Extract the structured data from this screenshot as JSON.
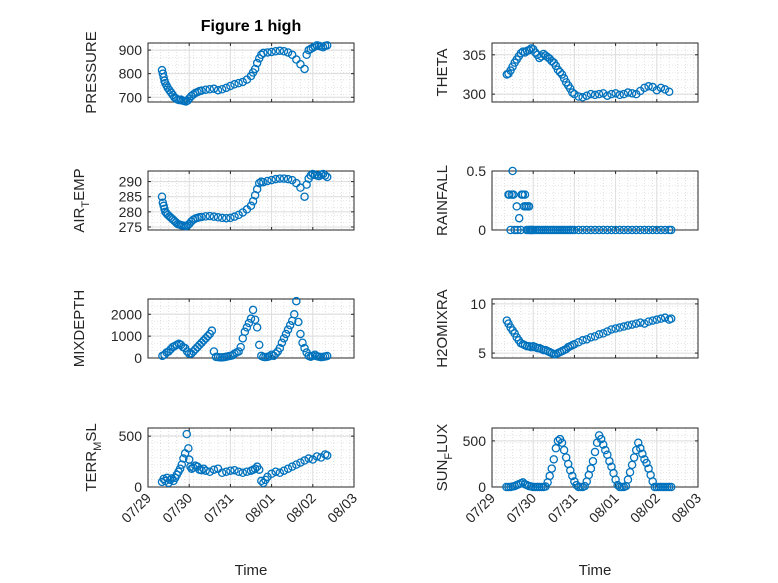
{
  "figure": {
    "title": "Figure 1 high",
    "colors": {
      "marker": "#0072bd",
      "axes": "#262626",
      "grid": "#dcdcdc"
    }
  },
  "chart_data": [
    {
      "type": "scatter",
      "id": "pressure",
      "ylabel": "PRESSURE",
      "ylim": [
        680,
        930
      ],
      "yticks": [
        700,
        800,
        900
      ],
      "xlim": [
        0,
        5
      ],
      "xlabel": "",
      "xticklabels": [],
      "grid": true,
      "x": [
        0.34,
        0.36,
        0.38,
        0.4,
        0.42,
        0.45,
        0.48,
        0.52,
        0.56,
        0.6,
        0.64,
        0.68,
        0.72,
        0.76,
        0.8,
        0.84,
        0.88,
        0.92,
        0.96,
        1.0,
        1.05,
        1.1,
        1.15,
        1.2,
        1.25,
        1.3,
        1.4,
        1.5,
        1.6,
        1.7,
        1.8,
        1.9,
        2.0,
        2.1,
        2.2,
        2.3,
        2.4,
        2.5,
        2.55,
        2.6,
        2.65,
        2.7,
        2.75,
        2.8,
        2.9,
        3.0,
        3.1,
        3.2,
        3.3,
        3.4,
        3.5,
        3.6,
        3.7,
        3.8,
        3.85,
        3.9,
        3.95,
        4.0,
        4.05,
        4.1,
        4.15,
        4.2,
        4.25,
        4.3,
        4.35
      ],
      "y": [
        815,
        800,
        785,
        770,
        760,
        750,
        740,
        730,
        720,
        710,
        700,
        695,
        690,
        688,
        690,
        686,
        684,
        682,
        686,
        695,
        705,
        712,
        718,
        722,
        726,
        728,
        732,
        734,
        736,
        730,
        734,
        740,
        748,
        755,
        760,
        765,
        775,
        790,
        805,
        820,
        845,
        865,
        880,
        888,
        890,
        892,
        895,
        897,
        895,
        890,
        880,
        860,
        840,
        820,
        880,
        900,
        905,
        910,
        915,
        920,
        918,
        915,
        912,
        918,
        920
      ]
    },
    {
      "type": "scatter",
      "id": "theta",
      "ylabel": "THETA",
      "ylim": [
        299,
        306.5
      ],
      "yticks": [
        300,
        305
      ],
      "xlim": [
        0,
        5
      ],
      "xlabel": "",
      "xticklabels": [],
      "grid": true,
      "x": [
        0.36,
        0.4,
        0.45,
        0.5,
        0.55,
        0.6,
        0.65,
        0.7,
        0.75,
        0.8,
        0.85,
        0.9,
        0.95,
        1.0,
        1.05,
        1.1,
        1.15,
        1.2,
        1.25,
        1.3,
        1.35,
        1.4,
        1.45,
        1.5,
        1.55,
        1.6,
        1.65,
        1.7,
        1.75,
        1.8,
        1.85,
        1.9,
        1.95,
        2.0,
        2.1,
        2.2,
        2.3,
        2.4,
        2.5,
        2.6,
        2.7,
        2.8,
        2.9,
        3.0,
        3.1,
        3.2,
        3.3,
        3.4,
        3.5,
        3.6,
        3.7,
        3.8,
        3.9,
        4.0,
        4.1,
        4.2,
        4.3
      ],
      "y": [
        302.5,
        302.6,
        303.0,
        303.5,
        304.0,
        304.4,
        304.8,
        305.2,
        305.4,
        305.3,
        305.5,
        305.6,
        305.8,
        305.7,
        305.3,
        305.0,
        304.6,
        304.8,
        305.1,
        304.9,
        304.7,
        304.5,
        304.2,
        304.0,
        303.6,
        303.1,
        302.8,
        302.5,
        302.0,
        301.5,
        301.1,
        300.7,
        300.2,
        300.0,
        299.7,
        299.6,
        299.8,
        300.0,
        299.9,
        300.0,
        300.1,
        299.8,
        300.0,
        300.1,
        299.9,
        300.0,
        300.2,
        300.1,
        300.0,
        300.4,
        300.8,
        301.0,
        300.9,
        300.5,
        300.8,
        300.6,
        300.3
      ]
    },
    {
      "type": "scatter",
      "id": "air_temp",
      "ylabel": "AIR_TEMP",
      "ylim": [
        274,
        293.5
      ],
      "yticks": [
        275,
        280,
        285,
        290
      ],
      "xlim": [
        0,
        5
      ],
      "xlabel": "",
      "xticklabels": [],
      "grid": true,
      "x": [
        0.34,
        0.36,
        0.38,
        0.4,
        0.42,
        0.45,
        0.48,
        0.52,
        0.56,
        0.6,
        0.64,
        0.68,
        0.72,
        0.76,
        0.8,
        0.84,
        0.88,
        0.92,
        0.96,
        1.0,
        1.05,
        1.1,
        1.15,
        1.2,
        1.25,
        1.3,
        1.4,
        1.5,
        1.6,
        1.7,
        1.8,
        1.9,
        2.0,
        2.1,
        2.2,
        2.3,
        2.4,
        2.5,
        2.55,
        2.6,
        2.65,
        2.7,
        2.75,
        2.8,
        2.9,
        3.0,
        3.1,
        3.2,
        3.3,
        3.4,
        3.5,
        3.6,
        3.7,
        3.8,
        3.85,
        3.9,
        3.95,
        4.0,
        4.05,
        4.1,
        4.15,
        4.2,
        4.25,
        4.3,
        4.35
      ],
      "y": [
        285,
        283,
        282,
        281,
        280,
        279.5,
        279,
        278.5,
        278,
        277.5,
        277,
        276.5,
        276,
        275.8,
        275.6,
        275.5,
        275.4,
        275.3,
        275.5,
        276,
        276.8,
        277.4,
        277.8,
        278,
        278.2,
        278.3,
        278.5,
        278.6,
        278.4,
        278.2,
        278,
        277.9,
        278,
        278.4,
        279,
        279.8,
        280.8,
        282,
        283.5,
        285.5,
        287.5,
        289.5,
        290,
        289.8,
        290.2,
        290.5,
        290.8,
        291,
        291,
        290.8,
        290.5,
        289.5,
        288,
        285,
        289,
        291,
        292,
        292.5,
        292.2,
        292,
        291.8,
        292.3,
        292.5,
        292,
        291.5
      ]
    },
    {
      "type": "scatter",
      "id": "rainfall",
      "ylabel": "RAINFALL",
      "ylim": [
        0,
        0.5
      ],
      "yticks": [
        0,
        0.5
      ],
      "xlim": [
        0,
        5
      ],
      "xlabel": "",
      "xticklabels": [],
      "grid": true,
      "x": [
        0.4,
        0.42,
        0.45,
        0.48,
        0.5,
        0.52,
        0.55,
        0.6,
        0.62,
        0.66,
        0.7,
        0.72,
        0.75,
        0.78,
        0.8,
        0.82,
        0.84,
        0.86,
        0.88,
        0.9,
        0.92,
        0.94,
        0.96,
        0.98,
        1.0,
        1.05,
        1.1,
        1.15,
        1.2,
        1.25,
        1.3,
        1.35,
        1.4,
        1.45,
        1.5,
        1.55,
        1.6,
        1.65,
        1.7,
        1.75,
        1.8,
        1.85,
        1.9,
        1.95,
        2.0,
        2.1,
        2.2,
        2.3,
        2.4,
        2.5,
        2.6,
        2.7,
        2.8,
        2.9,
        3.0,
        3.1,
        3.2,
        3.3,
        3.4,
        3.5,
        3.6,
        3.7,
        3.8,
        3.9,
        4.0,
        4.1,
        4.2,
        4.3,
        4.35
      ],
      "y": [
        0.3,
        0.3,
        0,
        0.3,
        0.5,
        0.3,
        0,
        0.2,
        0,
        0.1,
        0,
        0.3,
        0.3,
        0.2,
        0.3,
        0.2,
        0,
        0.2,
        0,
        0.2,
        0,
        0,
        0,
        0,
        0,
        0,
        0,
        0,
        0,
        0,
        0,
        0,
        0,
        0,
        0,
        0,
        0,
        0,
        0,
        0,
        0,
        0,
        0,
        0,
        0,
        0,
        0,
        0,
        0,
        0,
        0,
        0,
        0,
        0,
        0,
        0,
        0,
        0,
        0,
        0,
        0,
        0,
        0,
        0,
        0,
        0,
        0,
        0,
        0
      ]
    },
    {
      "type": "scatter",
      "id": "mixdepth",
      "ylabel": "MIXDEPTH",
      "ylim": [
        0,
        2700
      ],
      "yticks": [
        0,
        1000,
        2000
      ],
      "xlim": [
        0,
        5
      ],
      "xlabel": "",
      "xticklabels": [],
      "grid": true,
      "x": [
        0.35,
        0.4,
        0.45,
        0.5,
        0.55,
        0.6,
        0.65,
        0.7,
        0.75,
        0.8,
        0.85,
        0.9,
        0.95,
        1.0,
        1.05,
        1.1,
        1.15,
        1.2,
        1.25,
        1.3,
        1.35,
        1.4,
        1.45,
        1.5,
        1.55,
        1.6,
        1.65,
        1.7,
        1.75,
        1.8,
        1.85,
        1.9,
        1.95,
        2.0,
        2.05,
        2.1,
        2.15,
        2.2,
        2.25,
        2.3,
        2.35,
        2.4,
        2.45,
        2.5,
        2.55,
        2.6,
        2.65,
        2.7,
        2.75,
        2.8,
        2.85,
        2.9,
        2.95,
        3.0,
        3.05,
        3.1,
        3.15,
        3.2,
        3.25,
        3.3,
        3.35,
        3.4,
        3.45,
        3.5,
        3.55,
        3.6,
        3.65,
        3.7,
        3.75,
        3.8,
        3.85,
        3.9,
        3.95,
        4.0,
        4.05,
        4.1,
        4.15,
        4.2,
        4.25,
        4.3,
        4.35
      ],
      "y": [
        100,
        150,
        250,
        300,
        400,
        500,
        550,
        600,
        650,
        600,
        500,
        450,
        300,
        200,
        200,
        300,
        400,
        500,
        600,
        700,
        800,
        900,
        1000,
        1100,
        1250,
        300,
        50,
        40,
        30,
        30,
        40,
        60,
        80,
        100,
        120,
        200,
        250,
        300,
        500,
        900,
        1200,
        1400,
        1600,
        1800,
        2200,
        1750,
        1400,
        600,
        100,
        50,
        40,
        50,
        80,
        150,
        100,
        200,
        300,
        450,
        700,
        900,
        1100,
        1300,
        1500,
        1700,
        2000,
        2600,
        1650,
        1100,
        700,
        450,
        250,
        100,
        60,
        100,
        150,
        80,
        60,
        40,
        50,
        70,
        90
      ]
    },
    {
      "type": "scatter",
      "id": "h2omixra",
      "ylabel": "H2OMIXRA",
      "ylim": [
        4.5,
        10.5
      ],
      "yticks": [
        5,
        10
      ],
      "xlim": [
        0,
        5
      ],
      "xlabel": "",
      "xticklabels": [],
      "grid": true,
      "x": [
        0.36,
        0.4,
        0.45,
        0.5,
        0.55,
        0.6,
        0.65,
        0.7,
        0.75,
        0.8,
        0.85,
        0.9,
        0.95,
        1.0,
        1.05,
        1.1,
        1.15,
        1.2,
        1.25,
        1.3,
        1.35,
        1.4,
        1.45,
        1.5,
        1.55,
        1.6,
        1.65,
        1.7,
        1.75,
        1.8,
        1.85,
        1.9,
        1.95,
        2.0,
        2.1,
        2.2,
        2.3,
        2.4,
        2.5,
        2.6,
        2.7,
        2.8,
        2.9,
        3.0,
        3.1,
        3.2,
        3.3,
        3.4,
        3.5,
        3.6,
        3.7,
        3.8,
        3.9,
        4.0,
        4.1,
        4.2,
        4.3,
        4.35
      ],
      "y": [
        8.3,
        8.0,
        7.6,
        7.3,
        7.0,
        6.6,
        6.3,
        6.0,
        5.9,
        5.8,
        5.7,
        5.7,
        5.6,
        5.7,
        5.6,
        5.5,
        5.5,
        5.4,
        5.3,
        5.3,
        5.2,
        5.1,
        5.0,
        4.9,
        4.9,
        5.0,
        5.1,
        5.2,
        5.3,
        5.4,
        5.6,
        5.7,
        5.8,
        5.9,
        6.1,
        6.3,
        6.4,
        6.6,
        6.7,
        6.9,
        7.0,
        7.2,
        7.4,
        7.5,
        7.6,
        7.7,
        7.8,
        7.9,
        8.0,
        8.1,
        8.0,
        8.2,
        8.3,
        8.4,
        8.5,
        8.6,
        8.4,
        8.5
      ]
    },
    {
      "type": "scatter",
      "id": "terr_msl",
      "ylabel": "TERR_MSL",
      "ylim": [
        0,
        580
      ],
      "yticks": [
        0,
        500
      ],
      "xlim": [
        0,
        5
      ],
      "xlabel": "",
      "xticklabels": [],
      "grid": true,
      "x": [
        0.34,
        0.38,
        0.42,
        0.46,
        0.5,
        0.54,
        0.58,
        0.62,
        0.66,
        0.7,
        0.74,
        0.78,
        0.82,
        0.86,
        0.9,
        0.94,
        0.98,
        1.0,
        1.03,
        1.06,
        1.1,
        1.15,
        1.2,
        1.25,
        1.3,
        1.35,
        1.4,
        1.5,
        1.6,
        1.7,
        1.8,
        1.9,
        2.0,
        2.1,
        2.2,
        2.3,
        2.4,
        2.5,
        2.55,
        2.6,
        2.65,
        2.7,
        2.75,
        2.8,
        2.85,
        2.9,
        3.0,
        3.1,
        3.2,
        3.3,
        3.4,
        3.5,
        3.6,
        3.7,
        3.8,
        3.9,
        4.0,
        4.1,
        4.2,
        4.3,
        4.35
      ],
      "y": [
        50,
        80,
        60,
        90,
        40,
        70,
        85,
        60,
        90,
        120,
        150,
        180,
        220,
        280,
        330,
        520,
        380,
        270,
        200,
        180,
        190,
        210,
        200,
        170,
        165,
        180,
        160,
        150,
        170,
        180,
        140,
        150,
        160,
        165,
        150,
        140,
        150,
        160,
        170,
        180,
        200,
        170,
        60,
        40,
        70,
        100,
        130,
        150,
        140,
        160,
        180,
        200,
        220,
        240,
        260,
        280,
        270,
        300,
        290,
        320,
        310
      ]
    },
    {
      "type": "scatter",
      "id": "sun_flux",
      "ylabel": "SUN_FLUX",
      "ylim": [
        0,
        640
      ],
      "yticks": [
        0,
        500
      ],
      "xlim": [
        0,
        5
      ],
      "xlabel": "",
      "xticklabels": [],
      "grid": true,
      "x": [
        0.35,
        0.4,
        0.45,
        0.5,
        0.55,
        0.6,
        0.65,
        0.7,
        0.75,
        0.8,
        0.85,
        0.9,
        0.95,
        1.0,
        1.05,
        1.1,
        1.15,
        1.2,
        1.25,
        1.3,
        1.35,
        1.4,
        1.45,
        1.5,
        1.55,
        1.6,
        1.65,
        1.7,
        1.75,
        1.8,
        1.85,
        1.9,
        1.95,
        2.0,
        2.05,
        2.1,
        2.15,
        2.2,
        2.25,
        2.3,
        2.35,
        2.4,
        2.45,
        2.5,
        2.55,
        2.6,
        2.65,
        2.7,
        2.75,
        2.8,
        2.85,
        2.9,
        2.95,
        3.0,
        3.05,
        3.1,
        3.15,
        3.2,
        3.25,
        3.3,
        3.35,
        3.4,
        3.45,
        3.5,
        3.55,
        3.6,
        3.65,
        3.7,
        3.75,
        3.8,
        3.85,
        3.9,
        3.95,
        4.0,
        4.05,
        4.1,
        4.15,
        4.2,
        4.25,
        4.3,
        4.35
      ],
      "y": [
        0,
        0,
        0,
        5,
        10,
        20,
        30,
        40,
        50,
        30,
        20,
        10,
        5,
        0,
        0,
        0,
        0,
        0,
        0,
        5,
        50,
        120,
        200,
        300,
        420,
        500,
        520,
        480,
        400,
        320,
        250,
        180,
        120,
        60,
        20,
        0,
        0,
        0,
        10,
        60,
        130,
        200,
        280,
        380,
        480,
        560,
        520,
        460,
        400,
        350,
        280,
        220,
        150,
        80,
        20,
        0,
        0,
        0,
        10,
        80,
        160,
        240,
        320,
        400,
        480,
        420,
        360,
        300,
        260,
        200,
        130,
        60,
        0,
        0,
        0,
        0,
        0,
        0,
        0,
        0,
        0
      ]
    }
  ],
  "x_axis": {
    "ticks": [
      0,
      1,
      2,
      3,
      4,
      5
    ],
    "ticklabels": [
      "07/29",
      "07/30",
      "07/31",
      "08/01",
      "08/02",
      "08/03"
    ],
    "label": "Time"
  }
}
